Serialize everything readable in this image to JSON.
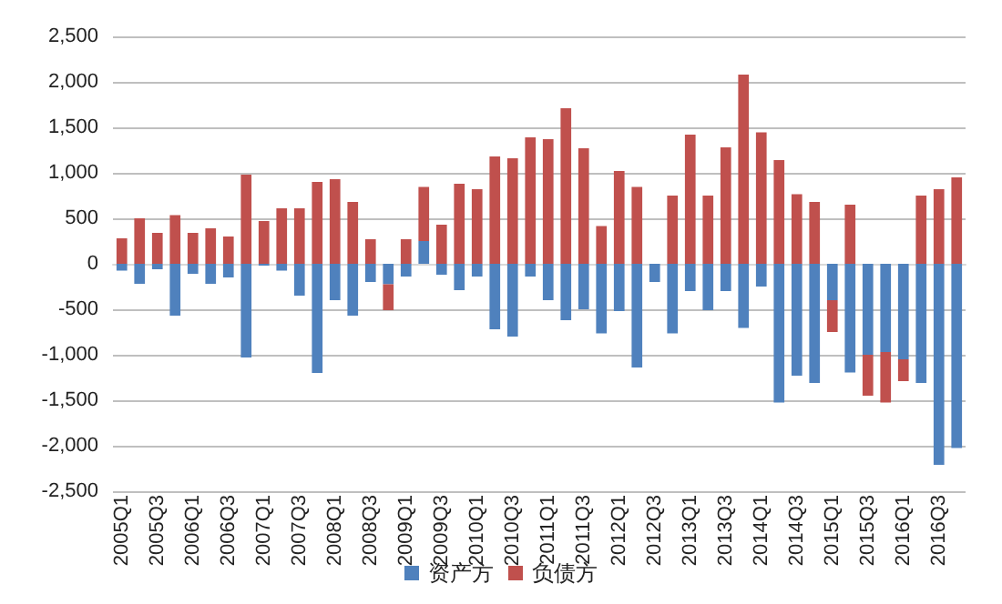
{
  "chart_data": {
    "type": "bar",
    "stacked": true,
    "categories": [
      "2005Q1",
      null,
      "2005Q3",
      null,
      "2006Q1",
      null,
      "2006Q3",
      null,
      "2007Q1",
      null,
      "2007Q3",
      null,
      "2008Q1",
      null,
      "2008Q3",
      null,
      "2009Q1",
      null,
      "2009Q3",
      null,
      "2010Q1",
      null,
      "2010Q3",
      null,
      "2011Q1",
      null,
      "2011Q3",
      null,
      "2012Q1",
      null,
      "2012Q3",
      null,
      "2013Q1",
      null,
      "2013Q3",
      null,
      "2014Q1",
      null,
      "2014Q3",
      null,
      "2015Q1",
      null,
      "2015Q3",
      null,
      "2016Q1",
      null,
      "2016Q3",
      null
    ],
    "series": [
      {
        "name": "资产方",
        "color": "#4f81bd",
        "values": [
          -75,
          -220,
          -60,
          -570,
          -110,
          -220,
          -150,
          -1030,
          -20,
          -75,
          -350,
          -1200,
          -400,
          -570,
          -200,
          -225,
          -140,
          250,
          -120,
          -290,
          -140,
          -720,
          -800,
          -140,
          -400,
          -620,
          -500,
          -765,
          -520,
          -1140,
          -200,
          -765,
          -300,
          -510,
          -300,
          -705,
          -250,
          -1525,
          -1230,
          -1310,
          -400,
          -1195,
          -1000,
          -970,
          -1050,
          -1310,
          -2210,
          -2025
        ]
      },
      {
        "name": "负债方",
        "color": "#c0504d",
        "values": [
          280,
          500,
          340,
          535,
          340,
          390,
          300,
          980,
          470,
          610,
          610,
          900,
          930,
          680,
          270,
          -285,
          270,
          595,
          430,
          880,
          820,
          1180,
          1160,
          1390,
          1370,
          1710,
          1270,
          415,
          1020,
          845,
          0,
          750,
          1420,
          750,
          1280,
          2080,
          1445,
          1140,
          765,
          680,
          -350,
          650,
          -450,
          -555,
          -240,
          750,
          820,
          950
        ]
      }
    ],
    "ylim": [
      -2500,
      2500
    ],
    "yticks": [
      {
        "value": -2500,
        "label": "-2,500"
      },
      {
        "value": -2000,
        "label": "-2,000"
      },
      {
        "value": -1500,
        "label": "-1,500"
      },
      {
        "value": -1000,
        "label": "-1,000"
      },
      -500,
      0,
      500,
      {
        "value": 1000,
        "label": "1,000"
      },
      {
        "value": 1500,
        "label": "1,500"
      },
      {
        "value": 2000,
        "label": "2,000"
      },
      {
        "value": 2500,
        "label": "2,500"
      }
    ],
    "grid": "y",
    "legend": "bottom"
  }
}
